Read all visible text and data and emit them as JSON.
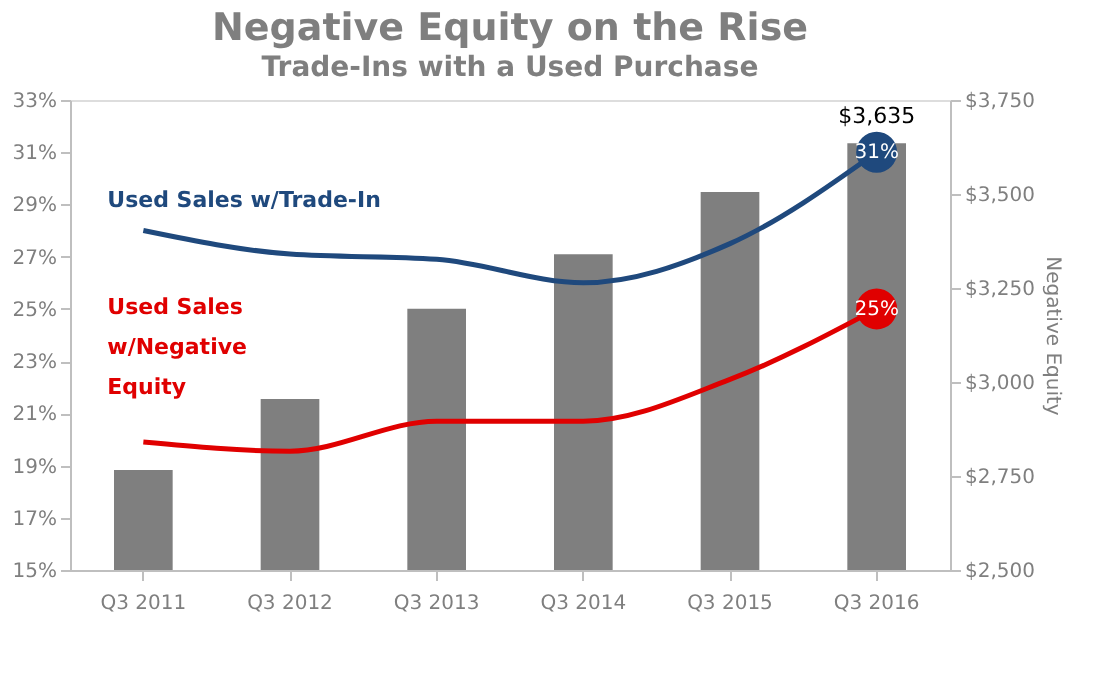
{
  "chart_data": {
    "type": "bar",
    "title": "Negative Equity on the Rise",
    "subtitle": "Trade-Ins with a Used Purchase",
    "y2label": "Negative Equity",
    "categories": [
      "Q3 2011",
      "Q3 2012",
      "Q3 2013",
      "Q3 2014",
      "Q3 2015",
      "Q3 2016"
    ],
    "series": [
      {
        "type": "bar",
        "axis": "y2",
        "color": "#7f7f7f",
        "values": [
          2766,
          2955,
          3195,
          3340,
          3505,
          3635
        ],
        "value_labels": [
          null,
          null,
          null,
          null,
          null,
          "$3,635"
        ]
      },
      {
        "type": "line",
        "name": "Used Sales w/Trade-In",
        "color": "#1f497d",
        "values": [
          28.0,
          27.1,
          26.9,
          26.0,
          27.5,
          31
        ],
        "value_labels": [
          null,
          null,
          null,
          null,
          null,
          "31%"
        ]
      },
      {
        "type": "line",
        "name": "Used Sales w/Negative Equity",
        "color": "#e00000",
        "values": [
          19.9,
          19.55,
          20.7,
          20.7,
          22.3,
          25
        ],
        "value_labels": [
          null,
          null,
          null,
          null,
          null,
          "25%"
        ]
      }
    ],
    "ylim": [
      15,
      33
    ],
    "yticks": [
      {
        "value": 15,
        "label": "15%"
      },
      {
        "value": 17,
        "label": "17%"
      },
      {
        "value": 19,
        "label": "19%"
      },
      {
        "value": 21,
        "label": "21%"
      },
      {
        "value": 23,
        "label": "23%"
      },
      {
        "value": 25,
        "label": "25%"
      },
      {
        "value": 27,
        "label": "27%"
      },
      {
        "value": 29,
        "label": "29%"
      },
      {
        "value": 31,
        "label": "31%"
      },
      {
        "value": 33,
        "label": "33%"
      }
    ],
    "y2lim": [
      2500,
      3750
    ],
    "y2ticks": [
      {
        "value": 2500,
        "label": "$2,500"
      },
      {
        "value": 2750,
        "label": "$2,750"
      },
      {
        "value": 3000,
        "label": "$3,000"
      },
      {
        "value": 3250,
        "label": "$3,250"
      },
      {
        "value": 3500,
        "label": "$3,500"
      },
      {
        "value": 3750,
        "label": "$3,750"
      }
    ],
    "grid": false,
    "legend": false
  }
}
